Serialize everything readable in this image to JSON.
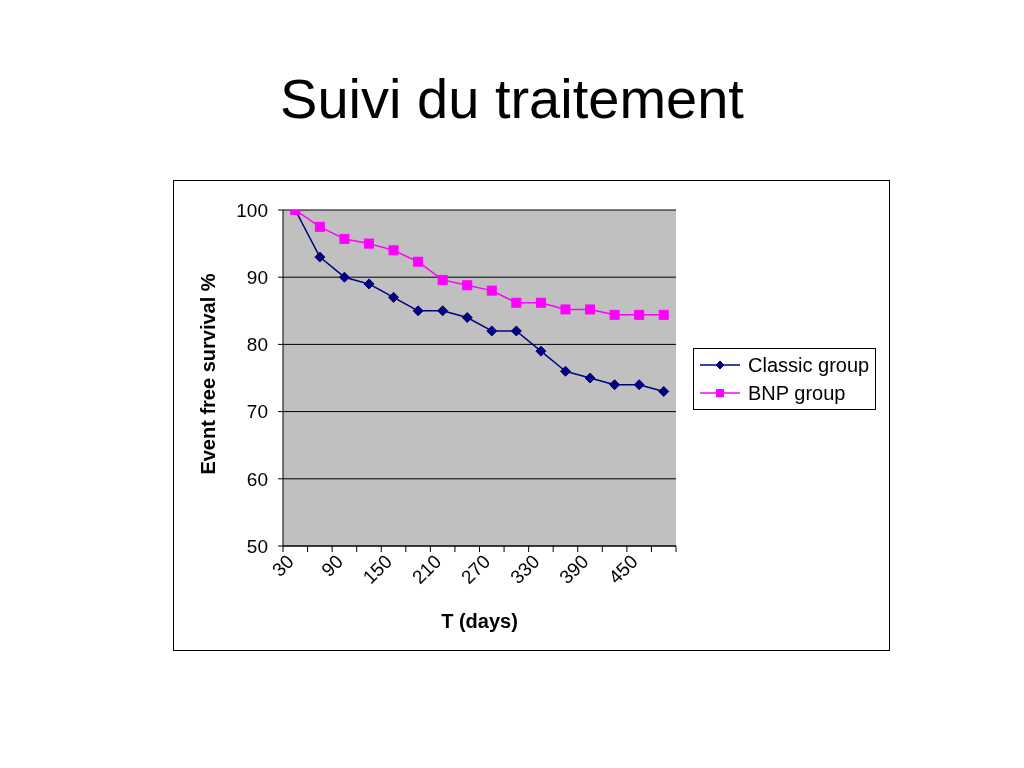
{
  "chart_data": {
    "type": "line",
    "title": "Suivi du traitement",
    "xlabel": "T (days)",
    "ylabel": "Event free survival %",
    "categories": [
      "30",
      null,
      "90",
      null,
      "150",
      null,
      "210",
      null,
      "270",
      null,
      "330",
      null,
      "390",
      null,
      "450",
      null
    ],
    "series": [
      {
        "name": "Classic group",
        "color": "#000080",
        "marker": "diamond",
        "values": [
          100,
          93,
          90,
          89,
          87,
          85,
          85,
          84,
          82,
          82,
          79,
          76,
          75,
          74,
          74,
          73
        ]
      },
      {
        "name": "BNP group",
        "color": "#ff00ff",
        "marker": "square",
        "values": [
          100,
          97.5,
          95.7,
          95,
          94,
          92.3,
          89.6,
          88.8,
          88,
          86.2,
          86.2,
          85.2,
          85.2,
          84.4,
          84.4,
          84.4
        ]
      }
    ],
    "ylim": [
      50,
      100
    ],
    "yticks": [
      50,
      60,
      70,
      80,
      90,
      100
    ],
    "grid": "y",
    "legend": "right",
    "line_style": "solid"
  }
}
